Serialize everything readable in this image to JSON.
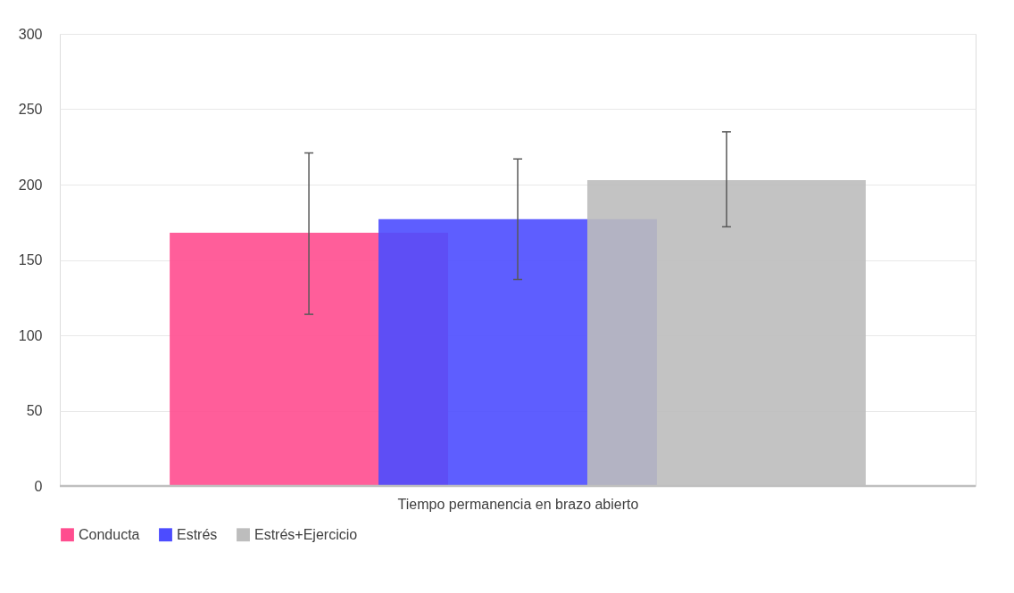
{
  "chart_data": {
    "type": "bar",
    "xlabel": "Tiempo permanencia en brazo abierto",
    "categories": [
      null
    ],
    "series": [
      {
        "name": "Conducta",
        "color": "#ff4d8f",
        "values": [
          168
        ],
        "errors": [
          [
            114,
            221
          ]
        ]
      },
      {
        "name": "Estrés",
        "color": "#4c4cff",
        "values": [
          177
        ],
        "errors": [
          [
            137,
            217
          ]
        ]
      },
      {
        "name": "Estrés+Ejercicio",
        "color": "#bdbdbd",
        "values": [
          203
        ],
        "errors": [
          [
            172,
            235
          ]
        ]
      }
    ],
    "ylim": [
      0,
      300
    ],
    "yticks": [
      0,
      50,
      100,
      150,
      200,
      250,
      300
    ],
    "grid": "y",
    "legend": "bottom"
  }
}
